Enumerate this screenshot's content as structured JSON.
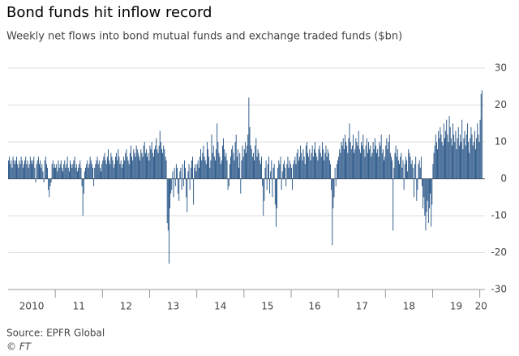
{
  "chart_data": {
    "type": "bar",
    "title": "Bond funds hit inflow record",
    "subtitle": "Weekly net flows into bond mutual funds and exchange traded funds ($bn)",
    "source": "Source: EPFR Global",
    "credit": "© FT",
    "color": "#1f4e82",
    "grid": true,
    "ylim": [
      -30,
      30
    ],
    "yticks": [
      -30,
      -20,
      -10,
      0,
      10,
      20,
      30
    ],
    "categories": [
      "2010",
      "11",
      "12",
      "13",
      "14",
      "15",
      "16",
      "17",
      "18",
      "19",
      "20"
    ],
    "values": [
      [
        5,
        6,
        4,
        5,
        3,
        6,
        5,
        4,
        5,
        6,
        4,
        3,
        5,
        4,
        6,
        5,
        3,
        4,
        5,
        6,
        4,
        5,
        3,
        4,
        6,
        5,
        4,
        5,
        6,
        3,
        -1,
        4,
        5,
        6,
        4,
        5,
        3,
        4,
        2,
        -1,
        5,
        6,
        4,
        3,
        -3,
        -5,
        -2,
        -1,
        4,
        5,
        3,
        4
      ],
      [
        3,
        4,
        2,
        5,
        3,
        4,
        5,
        3,
        2,
        4,
        5,
        3,
        4,
        6,
        3,
        2,
        5,
        4,
        3,
        4,
        5,
        6,
        3,
        4,
        2,
        3,
        4,
        5,
        3,
        -2,
        -10,
        -4,
        2,
        3,
        4,
        5,
        3,
        4,
        6,
        5,
        4,
        3,
        -2,
        3,
        4,
        5,
        6,
        4,
        5,
        3,
        2,
        4
      ],
      [
        5,
        6,
        7,
        5,
        4,
        6,
        8,
        5,
        4,
        7,
        6,
        5,
        3,
        4,
        6,
        7,
        5,
        8,
        6,
        4,
        5,
        3,
        4,
        6,
        5,
        7,
        8,
        6,
        5,
        4,
        7,
        9,
        6,
        5,
        8,
        7,
        6,
        9,
        8,
        7,
        6,
        5,
        8,
        7,
        6,
        9,
        10,
        7,
        8,
        6,
        7,
        5
      ],
      [
        9,
        8,
        10,
        7,
        6,
        8,
        9,
        11,
        8,
        7,
        9,
        13,
        10,
        8,
        7,
        9,
        8,
        6,
        5,
        -12,
        -14,
        -23,
        -8,
        -4,
        -3,
        2,
        -5,
        3,
        -2,
        4,
        3,
        -4,
        -6,
        2,
        3,
        -3,
        4,
        -2,
        5,
        3,
        -5,
        -9,
        2,
        4,
        -3,
        3,
        5,
        6,
        -7,
        3,
        4,
        2
      ],
      [
        4,
        5,
        3,
        6,
        8,
        5,
        7,
        9,
        6,
        5,
        4,
        10,
        8,
        6,
        3,
        5,
        12,
        7,
        9,
        6,
        5,
        8,
        15,
        10,
        7,
        6,
        4,
        5,
        9,
        11,
        8,
        6,
        7,
        5,
        -3,
        -2,
        4,
        6,
        8,
        9,
        7,
        5,
        10,
        12,
        6,
        8,
        3,
        7,
        -4,
        5,
        9,
        6
      ],
      [
        8,
        10,
        7,
        9,
        12,
        22,
        14,
        9,
        8,
        6,
        7,
        5,
        9,
        11,
        6,
        8,
        7,
        5,
        4,
        6,
        -2,
        -10,
        -6,
        3,
        5,
        -3,
        4,
        6,
        -4,
        2,
        5,
        -5,
        3,
        4,
        -7,
        -13,
        -8,
        3,
        5,
        4,
        6,
        -3,
        2,
        4,
        5,
        3,
        -2,
        4,
        6,
        3,
        5,
        4
      ],
      [
        3,
        -3,
        4,
        5,
        6,
        4,
        7,
        8,
        5,
        6,
        9,
        7,
        5,
        8,
        6,
        4,
        9,
        10,
        7,
        6,
        8,
        5,
        7,
        9,
        6,
        8,
        10,
        7,
        6,
        5,
        8,
        9,
        7,
        6,
        10,
        8,
        5,
        7,
        9,
        6,
        8,
        7,
        5,
        4,
        -3,
        -18,
        -8,
        -5,
        3,
        -2,
        4,
        5
      ],
      [
        6,
        8,
        7,
        10,
        9,
        11,
        8,
        12,
        10,
        9,
        7,
        11,
        15,
        10,
        8,
        9,
        12,
        7,
        8,
        11,
        10,
        9,
        13,
        8,
        7,
        10,
        9,
        12,
        8,
        6,
        9,
        11,
        7,
        10,
        8,
        9,
        6,
        7,
        10,
        8,
        11,
        9,
        7,
        8,
        6,
        10,
        9,
        12,
        7,
        8,
        5,
        6
      ],
      [
        9,
        11,
        8,
        10,
        12,
        7,
        6,
        5,
        -14,
        3,
        7,
        9,
        6,
        8,
        5,
        4,
        6,
        7,
        3,
        5,
        -3,
        4,
        6,
        5,
        2,
        8,
        7,
        6,
        4,
        5,
        3,
        -5,
        4,
        6,
        -6,
        -3,
        4,
        5,
        3,
        6,
        -2,
        -8,
        -5,
        -10,
        -14,
        -9,
        -6,
        -12,
        -8,
        -4,
        -13,
        -7
      ],
      [
        4,
        7,
        9,
        12,
        10,
        8,
        13,
        11,
        14,
        12,
        10,
        9,
        15,
        11,
        13,
        16,
        12,
        10,
        17,
        14,
        11,
        9,
        15,
        12,
        10,
        13,
        8,
        11,
        14,
        9,
        12,
        10,
        16,
        8,
        11,
        13,
        9,
        12,
        15,
        10,
        7,
        11,
        14,
        12,
        9,
        10,
        13,
        8,
        11,
        15,
        12,
        10
      ],
      [
        16,
        23,
        24
      ]
    ]
  }
}
